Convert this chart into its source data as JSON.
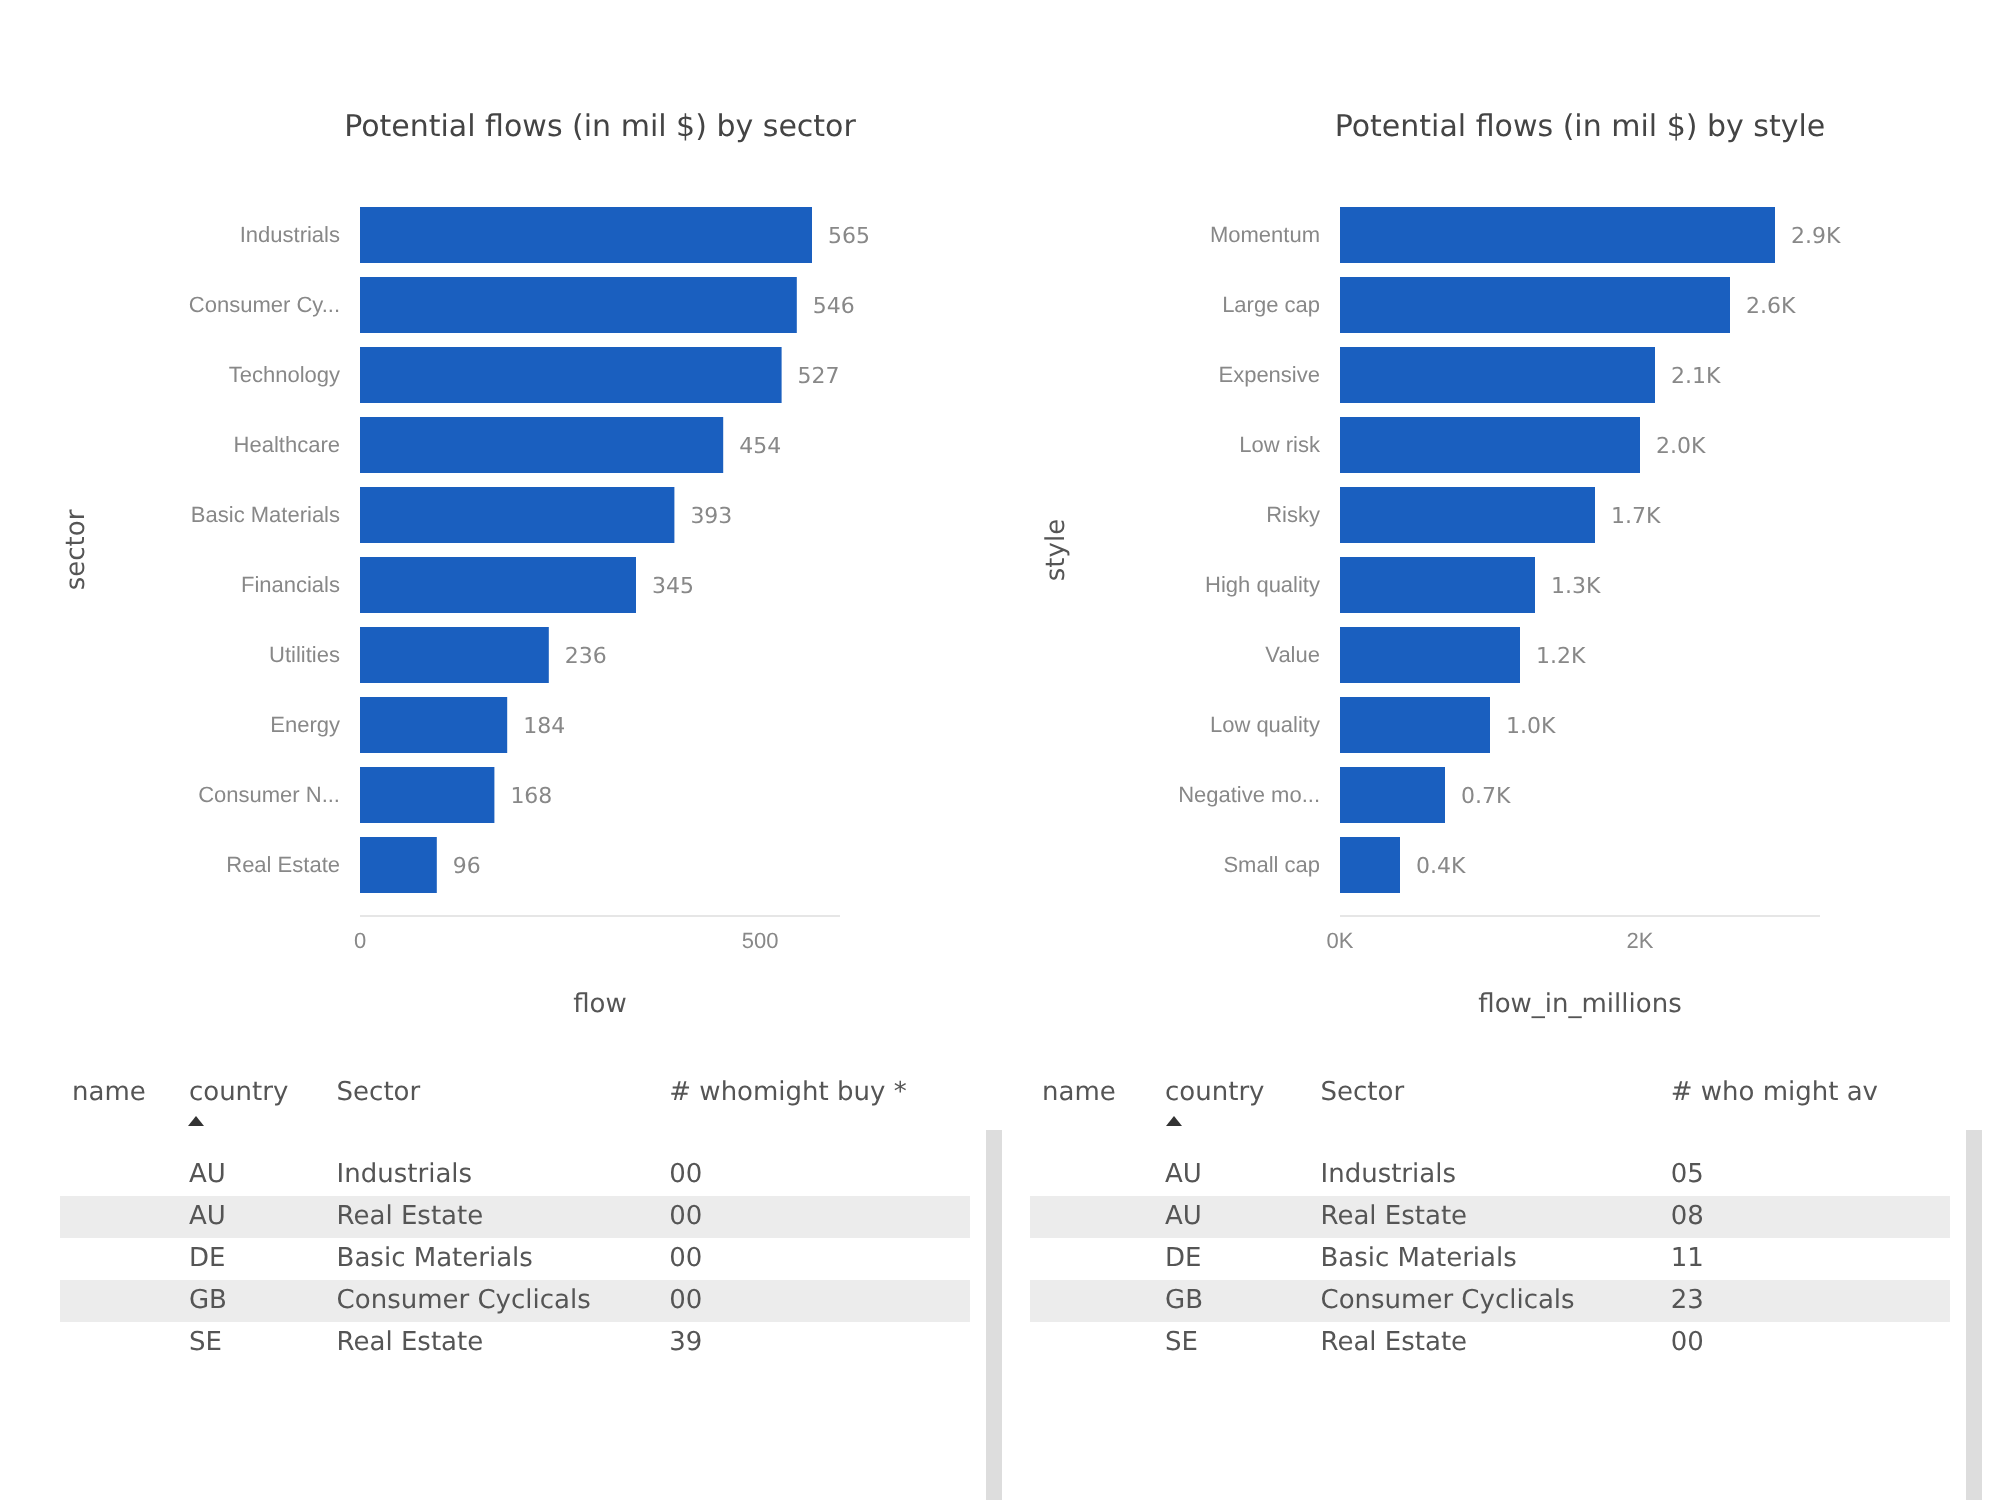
{
  "chart_data": [
    {
      "type": "bar",
      "orientation": "horizontal",
      "title": "Potential flows (in mil $) by sector",
      "xlabel": "flow",
      "ylabel": "sector",
      "categories": [
        "Industrials",
        "Consumer Cy...",
        "Technology",
        "Healthcare",
        "Basic Materials",
        "Financials",
        "Utilities",
        "Energy",
        "Consumer N...",
        "Real Estate"
      ],
      "values": [
        565,
        546,
        527,
        454,
        393,
        345,
        236,
        184,
        168,
        96
      ],
      "color": "#1a5fbf",
      "xlim": [
        0,
        600
      ],
      "xticks": [
        0,
        500
      ],
      "data_labels": true
    },
    {
      "type": "bar",
      "orientation": "horizontal",
      "title": "Potential flows (in mil $) by style",
      "xlabel": "flow_in_millions",
      "ylabel": "style",
      "categories": [
        "Momentum",
        "Large cap",
        "Expensive",
        "Low risk",
        "Risky",
        "High quality",
        "Value",
        "Low quality",
        "Negative mo...",
        "Small cap"
      ],
      "values": [
        2.9,
        2.6,
        2.1,
        2.0,
        1.7,
        1.3,
        1.2,
        1.0,
        0.7,
        0.4
      ],
      "value_labels": [
        "2.9K",
        "2.6K",
        "2.1K",
        "2.0K",
        "1.7K",
        "1.3K",
        "1.2K",
        "1.0K",
        "0.7K",
        "0.4K"
      ],
      "color": "#1a5fbf",
      "xlim": [
        0,
        3.2
      ],
      "xticks": [
        {
          "value": 0,
          "label": "0K"
        },
        {
          "value": 2,
          "label": "2K"
        }
      ]
    },
    {
      "type": "other",
      "categories": [
        "name",
        "country",
        "Sector",
        "# whomight buy *"
      ],
      "cell_labels": [
        [
          null,
          "AU",
          "Industrials",
          "00"
        ],
        [
          null,
          "AU",
          "Real Estate",
          "00"
        ],
        [
          null,
          "DE",
          "Basic Materials",
          "00"
        ],
        [
          null,
          "GB",
          "Consumer Cyclicals",
          "00"
        ],
        [
          null,
          "SE",
          "Real Estate",
          "39"
        ]
      ]
    },
    {
      "type": "other",
      "categories": [
        "name",
        "country",
        "Sector",
        "# who might av"
      ],
      "cell_labels": [
        [
          null,
          "AU",
          "Industrials",
          "05"
        ],
        [
          null,
          "AU",
          "Real Estate",
          "08"
        ],
        [
          null,
          "DE",
          "Basic Materials",
          "11"
        ],
        [
          null,
          "GB",
          "Consumer Cyclicals",
          "23"
        ],
        [
          null,
          "SE",
          "Real Estate",
          "00"
        ]
      ]
    }
  ]
}
